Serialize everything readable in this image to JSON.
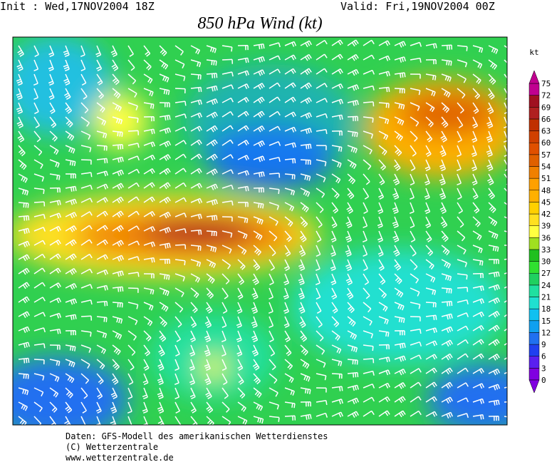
{
  "header": {
    "init": "Init : Wed,17NOV2004 18Z",
    "valid": "Valid: Fri,19NOV2004 00Z",
    "title": "850 hPa Wind (kt)"
  },
  "colorbar": {
    "unit": "kt",
    "labels": [
      "0",
      "3",
      "6",
      "9",
      "12",
      "15",
      "18",
      "21",
      "24",
      "27",
      "30",
      "33",
      "36",
      "39",
      "42",
      "45",
      "48",
      "51",
      "54",
      "57",
      "60",
      "63",
      "66",
      "69",
      "72",
      "75"
    ],
    "colors": [
      "#8000e0",
      "#5a20f0",
      "#2040f0",
      "#2070f0",
      "#10a0f0",
      "#10c0f0",
      "#20e0d0",
      "#20e0a0",
      "#20d060",
      "#30e030",
      "#20c020",
      "#a0e020",
      "#ffff40",
      "#ffe020",
      "#ffd000",
      "#ffb000",
      "#ffa000",
      "#f08000",
      "#e06000",
      "#e05000",
      "#d04000",
      "#c03000",
      "#b02020",
      "#a01020",
      "#c00090"
    ]
  },
  "footer": {
    "lines": [
      "Daten: GFS-Modell des amerikanischen Wetterdienstes",
      "(C) Wetterzentrale",
      "www.wetterzentrale.de"
    ]
  }
}
